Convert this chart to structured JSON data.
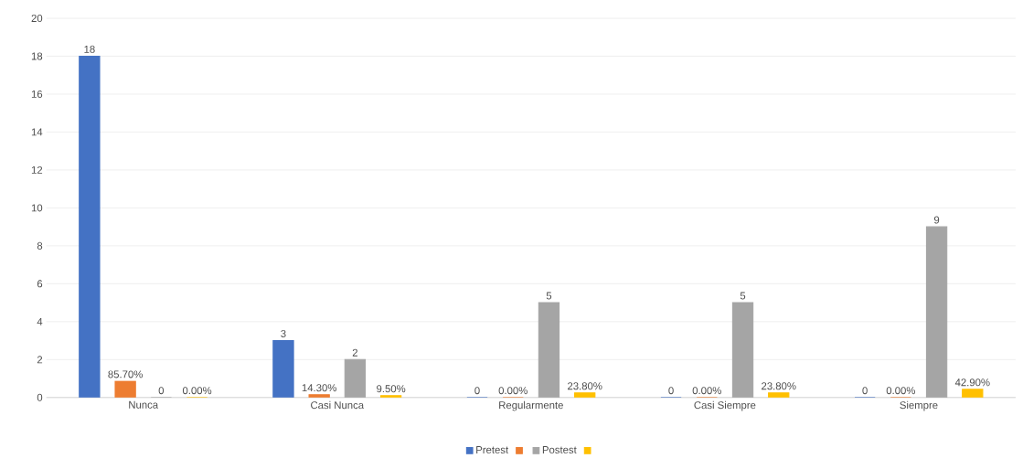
{
  "chart_data": {
    "type": "bar",
    "categories": [
      "Nunca",
      "Casi Nunca",
      "Regularmente",
      "Casi Siempre",
      "Siempre"
    ],
    "series": [
      {
        "name": "Pretest",
        "color": "#4472c4",
        "values": [
          18,
          3,
          0,
          0,
          0
        ],
        "value_labels": [
          "18",
          "3",
          "0",
          "0",
          "0"
        ]
      },
      {
        "color": "#ed7d31",
        "values": [
          0.857,
          0.143,
          0,
          0,
          0
        ],
        "value_labels": [
          "85.70%",
          "14.30%",
          "0.00%",
          "0.00%",
          "0.00%"
        ]
      },
      {
        "name": "Postest",
        "color": "#a5a5a5",
        "values": [
          0,
          2,
          5,
          5,
          9
        ],
        "value_labels": [
          "0",
          "2",
          "5",
          "5",
          "9"
        ]
      },
      {
        "color": "#ffc000",
        "values": [
          0,
          0.095,
          0.238,
          0.238,
          0.429
        ],
        "value_labels": [
          "0.00%",
          "9.50%",
          "23.80%",
          "23.80%",
          "42.90%"
        ]
      }
    ],
    "ylim": [
      0,
      20
    ],
    "yticks": [
      0,
      2,
      4,
      6,
      8,
      10,
      12,
      14,
      16,
      18,
      20
    ],
    "grid": "y",
    "legend": "bottom"
  }
}
